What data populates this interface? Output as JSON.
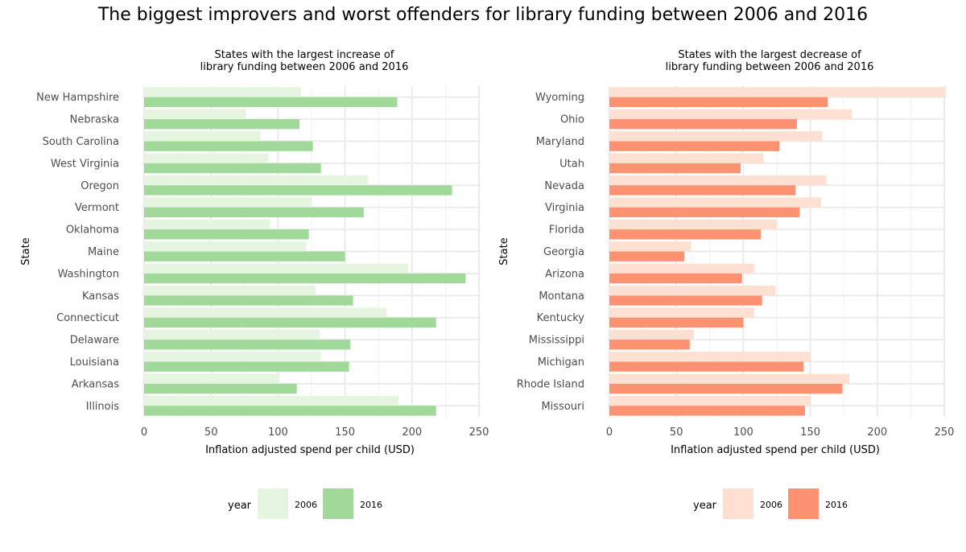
{
  "title": "The biggest improvers and worst offenders for library funding between 2006 and 2016",
  "chart_data": [
    {
      "type": "bar",
      "orientation": "horizontal",
      "title_lines": [
        "States with the largest increase of",
        "library funding between 2006 and 2016"
      ],
      "xlabel": "Inflation adjusted spend per child (USD)",
      "ylabel": "State",
      "xlim": [
        0,
        250
      ],
      "xticks": [
        0,
        50,
        100,
        150,
        200,
        250
      ],
      "grid": true,
      "categories": [
        "New Hampshire",
        "Nebraska",
        "South Carolina",
        "West Virginia",
        "Oregon",
        "Vermont",
        "Oklahoma",
        "Maine",
        "Washington",
        "Kansas",
        "Connecticut",
        "Delaware",
        "Louisiana",
        "Arkansas",
        "Illinois"
      ],
      "series": [
        {
          "name": "2006",
          "color": "#e5f5e0",
          "values": [
            117,
            76,
            87,
            93,
            167,
            125,
            94,
            121,
            197,
            128,
            181,
            131,
            132,
            101,
            190
          ]
        },
        {
          "name": "2016",
          "color": "#a1d99b",
          "values": [
            189,
            116,
            126,
            132,
            230,
            164,
            123,
            150,
            240,
            156,
            218,
            154,
            153,
            114,
            218
          ]
        }
      ],
      "legend": {
        "title": "year",
        "position": "bottom"
      }
    },
    {
      "type": "bar",
      "orientation": "horizontal",
      "title_lines": [
        "States with the largest decrease of",
        "library funding between 2006 and 2016"
      ],
      "xlabel": "Inflation adjusted spend per child (USD)",
      "ylabel": "State",
      "xlim": [
        0,
        250
      ],
      "xticks": [
        0,
        50,
        100,
        150,
        200,
        250
      ],
      "grid": true,
      "categories": [
        "Wyoming",
        "Ohio",
        "Maryland",
        "Utah",
        "Nevada",
        "Virginia",
        "Florida",
        "Georgia",
        "Arizona",
        "Montana",
        "Kentucky",
        "Mississippi",
        "Michigan",
        "Rhode Island",
        "Missouri"
      ],
      "series": [
        {
          "name": "2006",
          "color": "#fee0d2",
          "values": [
            251,
            181,
            159,
            115,
            162,
            158,
            125,
            61,
            108,
            124,
            108,
            63,
            150,
            179,
            150
          ]
        },
        {
          "name": "2016",
          "color": "#fc9272",
          "values": [
            163,
            140,
            127,
            98,
            139,
            142,
            113,
            56,
            99,
            114,
            100,
            60,
            145,
            174,
            146
          ]
        }
      ],
      "legend": {
        "title": "year",
        "position": "bottom"
      }
    }
  ]
}
